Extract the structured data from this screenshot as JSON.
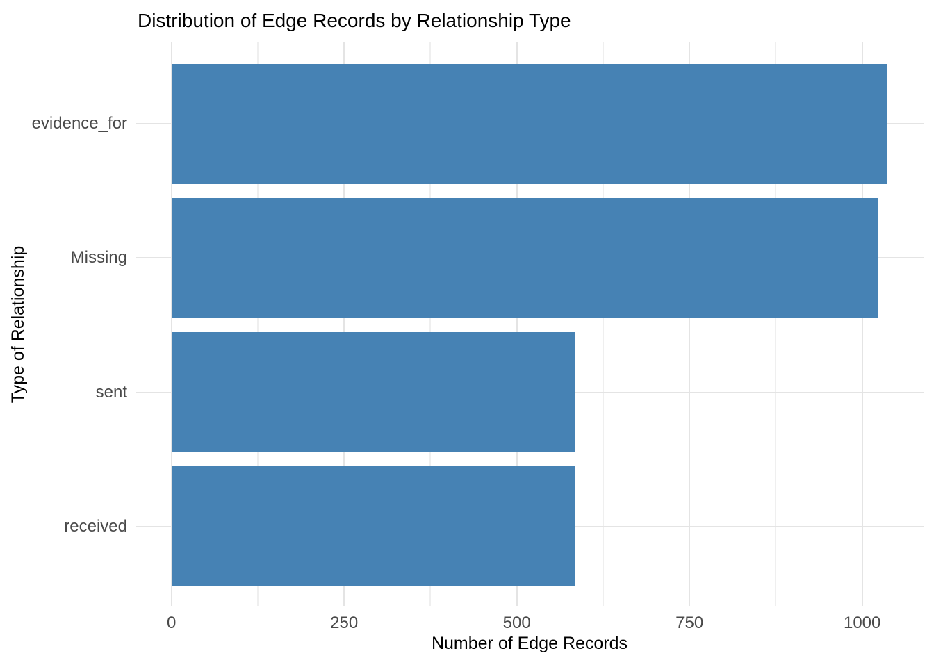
{
  "chart_data": {
    "type": "bar",
    "orientation": "horizontal",
    "title": "Distribution of Edge Records by Relationship Type",
    "xlabel": "Number of Edge Records",
    "ylabel": "Type of Relationship",
    "categories": [
      "evidence_for",
      "Missing",
      "sent",
      "received"
    ],
    "values": [
      1036,
      1022,
      584,
      584
    ],
    "x_ticks": [
      0,
      250,
      500,
      750,
      1000
    ],
    "xlim": [
      -52,
      1092
    ],
    "grid": true,
    "legend": "none",
    "bar_color": "#4682B4",
    "background_color": "#ffffff",
    "major_grid_color": "#e4e4e4",
    "minor_grid_color": "#efefef",
    "tick_label_color": "#4a4a4a",
    "title_color": "#000000"
  }
}
